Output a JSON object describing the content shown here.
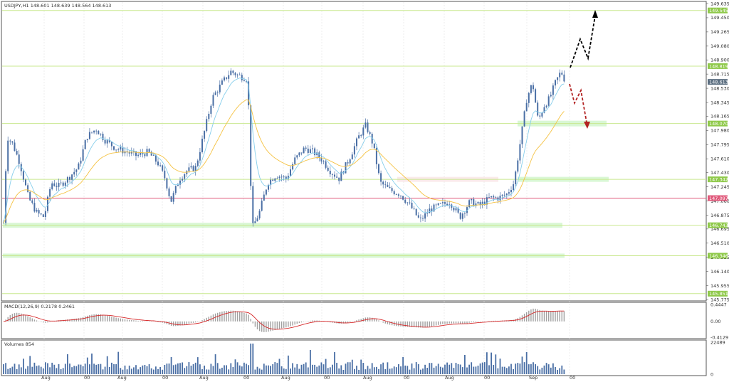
{
  "header": {
    "title": "USDJPY,H1  148.601 148.639 148.564 148.613"
  },
  "price_axis": {
    "ticks": [
      {
        "label": "149.635",
        "v": 149.635
      },
      {
        "label": "149.450",
        "v": 149.45
      },
      {
        "label": "149.265",
        "v": 149.265
      },
      {
        "label": "149.080",
        "v": 149.08
      },
      {
        "label": "148.900",
        "v": 148.9
      },
      {
        "label": "148.715",
        "v": 148.715
      },
      {
        "label": "148.530",
        "v": 148.53
      },
      {
        "label": "148.345",
        "v": 148.345
      },
      {
        "label": "148.165",
        "v": 148.165
      },
      {
        "label": "147.980",
        "v": 147.98
      },
      {
        "label": "147.795",
        "v": 147.795
      },
      {
        "label": "147.610",
        "v": 147.61
      },
      {
        "label": "147.430",
        "v": 147.43
      },
      {
        "label": "147.245",
        "v": 147.245
      },
      {
        "label": "147.060",
        "v": 147.06
      },
      {
        "label": "146.875",
        "v": 146.875
      },
      {
        "label": "146.695",
        "v": 146.695
      },
      {
        "label": "146.510",
        "v": 146.51
      },
      {
        "label": "146.325",
        "v": 146.325
      },
      {
        "label": "146.140",
        "v": 146.14
      },
      {
        "label": "145.955",
        "v": 145.955
      },
      {
        "label": "145.775",
        "v": 145.775
      }
    ],
    "vmin": 145.775,
    "vmax": 149.635
  },
  "levels": [
    {
      "label": "149.545",
      "v": 149.545,
      "color": "#c9e88f"
    },
    {
      "label": "148.819",
      "v": 148.819,
      "color": "#c9e88f"
    },
    {
      "label": "148.070",
      "v": 148.07,
      "color": "#c9e88f"
    },
    {
      "label": "147.342",
      "v": 147.342,
      "color": "#c9e88f"
    },
    {
      "label": "147.097",
      "v": 147.097,
      "color": "#e0587a"
    },
    {
      "label": "146.743",
      "v": 146.743,
      "color": "#c9e88f"
    },
    {
      "label": "146.346",
      "v": 146.346,
      "color": "#c9e88f"
    },
    {
      "label": "145.851",
      "v": 145.851,
      "color": "#c9e88f"
    }
  ],
  "current_price": {
    "label": "148.613",
    "v": 148.613,
    "color": "#5b6e80"
  },
  "macd": {
    "title": "MACD(12,26,9) 0.2178 0.2461",
    "ticks": [
      {
        "label": "0.4447",
        "v": 0.4447
      },
      {
        "label": "0.00",
        "v": 0
      },
      {
        "label": "-0.4129",
        "v": -0.4129
      }
    ],
    "vmin": -0.4129,
    "vmax": 0.4447
  },
  "volumes": {
    "title": "Volumes 854",
    "ticks": [
      {
        "label": "22489",
        "v": 22489
      },
      {
        "label": "0",
        "v": 0
      }
    ],
    "vmax": 22489
  },
  "time_axis": {
    "labels": [
      "Aug",
      "00",
      "Aug",
      "00",
      "Aug",
      "00",
      "Aug",
      "00",
      "Aug",
      "00",
      "Aug",
      "00",
      "Sep",
      "00"
    ]
  },
  "colors": {
    "candle": "#4a6fa5",
    "ma_fast": "#87ceeb",
    "ma_slow": "#f5c242",
    "macd_signal": "#d62728",
    "histogram": "#a0a0a0",
    "arrow_up": "#000000",
    "arrow_down": "#b22222"
  }
}
